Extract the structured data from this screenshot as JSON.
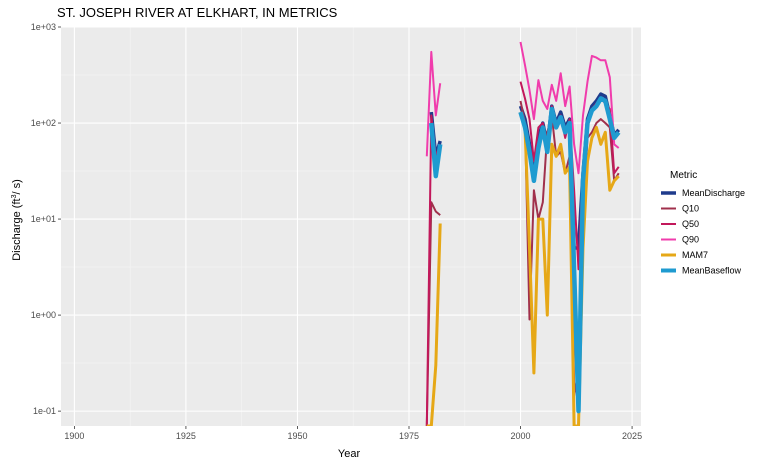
{
  "chart_data": {
    "type": "line",
    "title": "ST. JOSEPH RIVER AT ELKHART, IN  METRICS",
    "xlabel": "Year",
    "ylabel": "Discharge (ft",
    "ylabel_sup": "3",
    "ylabel_suffix": "/ s)",
    "y_scale": "log",
    "xlim": [
      1897,
      2027
    ],
    "ylim": [
      0.07,
      1000
    ],
    "x_ticks": [
      1900,
      1925,
      1950,
      1975,
      2000,
      2025
    ],
    "y_ticks": [
      {
        "value": 0.1,
        "label": "1e-01"
      },
      {
        "value": 1,
        "label": "1e+00"
      },
      {
        "value": 10,
        "label": "1e+01"
      },
      {
        "value": 100,
        "label": "1e+02"
      },
      {
        "value": 1000,
        "label": "1e+03"
      }
    ],
    "grid": true,
    "background": "#ebebeb",
    "legend": {
      "title": "Metric",
      "position": "right"
    },
    "series": [
      {
        "name": "MeanDischarge",
        "color": "#1f3b8c",
        "width": 3.5,
        "segments": [
          {
            "x": [
              1980,
              1981,
              1982
            ],
            "y": [
              130,
              45,
              65
            ]
          },
          {
            "x": [
              2000,
              2001,
              2002,
              2003,
              2004,
              2005,
              2006,
              2007,
              2008,
              2009,
              2010,
              2011,
              2012,
              2013,
              2014,
              2015,
              2016,
              2017,
              2018,
              2019,
              2020,
              2021,
              2022
            ],
            "y": [
              150,
              110,
              60,
              30,
              70,
              100,
              60,
              150,
              100,
              130,
              90,
              110,
              5,
              5,
              30,
              110,
              150,
              170,
              200,
              190,
              120,
              75,
              85
            ]
          }
        ]
      },
      {
        "name": "Q10",
        "color": "#a0304c",
        "width": 2,
        "segments": [
          {
            "x": [
              1979,
              1980,
              1981,
              1982
            ],
            "y": [
              0.07,
              15,
              12,
              11
            ]
          },
          {
            "x": [
              2000,
              2001,
              2002,
              2003,
              2004,
              2005,
              2006,
              2007,
              2008,
              2009,
              2010,
              2011,
              2012,
              2013,
              2014,
              2015,
              2016,
              2017,
              2018,
              2019,
              2020,
              2021,
              2022
            ],
            "y": [
              170,
              100,
              0.9,
              20,
              10,
              15,
              80,
              120,
              45,
              50,
              30,
              45,
              0.2,
              0.12,
              10,
              70,
              80,
              100,
              110,
              100,
              90,
              25,
              30
            ]
          }
        ]
      },
      {
        "name": "Q50",
        "color": "#c2185b",
        "width": 2,
        "segments": [
          {
            "x": [
              1979,
              1980,
              1981,
              1982
            ],
            "y": [
              0.07,
              120,
              45,
              60
            ]
          },
          {
            "x": [
              2000,
              2001,
              2002,
              2003,
              2004,
              2005,
              2006,
              2007,
              2008,
              2009,
              2010,
              2011,
              2012,
              2013,
              2014,
              2015,
              2016,
              2017,
              2018,
              2019,
              2020,
              2021,
              2022
            ],
            "y": [
              270,
              180,
              110,
              40,
              90,
              100,
              60,
              150,
              90,
              120,
              70,
              110,
              20,
              3,
              35,
              90,
              140,
              160,
              180,
              160,
              140,
              30,
              35
            ]
          }
        ]
      },
      {
        "name": "Q90",
        "color": "#f03cac",
        "width": 2,
        "segments": [
          {
            "x": [
              1979,
              1980,
              1981,
              1982
            ],
            "y": [
              45,
              550,
              120,
              260
            ]
          },
          {
            "x": [
              2000,
              2001,
              2002,
              2003,
              2004,
              2005,
              2006,
              2007,
              2008,
              2009,
              2010,
              2011,
              2012,
              2013,
              2014,
              2015,
              2016,
              2017,
              2018,
              2019,
              2020,
              2021,
              2022
            ],
            "y": [
              700,
              400,
              220,
              110,
              280,
              170,
              140,
              250,
              170,
              330,
              150,
              240,
              60,
              30,
              120,
              270,
              500,
              480,
              450,
              450,
              300,
              60,
              55
            ]
          }
        ]
      },
      {
        "name": "MAM7",
        "color": "#e6a817",
        "width": 3,
        "segments": [
          {
            "x": [
              1979,
              1980,
              1981,
              1982
            ],
            "y": [
              0.07,
              0.07,
              0.3,
              9
            ]
          },
          {
            "x": [
              2000,
              2001,
              2002,
              2003,
              2004,
              2005,
              2006,
              2007,
              2008,
              2009,
              2010,
              2011,
              2012,
              2013,
              2014,
              2015,
              2016,
              2017,
              2018,
              2019,
              2020,
              2021,
              2022
            ],
            "y": [
              130,
              90,
              5,
              0.25,
              10,
              10,
              1,
              60,
              45,
              60,
              30,
              35,
              0.07,
              0.07,
              5,
              40,
              70,
              90,
              60,
              80,
              20,
              25,
              28
            ]
          }
        ]
      },
      {
        "name": "MeanBaseflow",
        "color": "#1f9bd0",
        "width": 4.5,
        "segments": [
          {
            "x": [
              1980,
              1981,
              1982
            ],
            "y": [
              100,
              28,
              60
            ]
          },
          {
            "x": [
              2000,
              2001,
              2002,
              2003,
              2004,
              2005,
              2006,
              2007,
              2008,
              2009,
              2010,
              2011,
              2012,
              2013,
              2014,
              2015,
              2016,
              2017,
              2018,
              2019,
              2020,
              2021,
              2022
            ],
            "y": [
              130,
              90,
              50,
              25,
              55,
              90,
              50,
              140,
              90,
              115,
              80,
              100,
              3,
              0.1,
              25,
              100,
              135,
              150,
              180,
              170,
              110,
              70,
              80
            ]
          }
        ]
      }
    ]
  }
}
